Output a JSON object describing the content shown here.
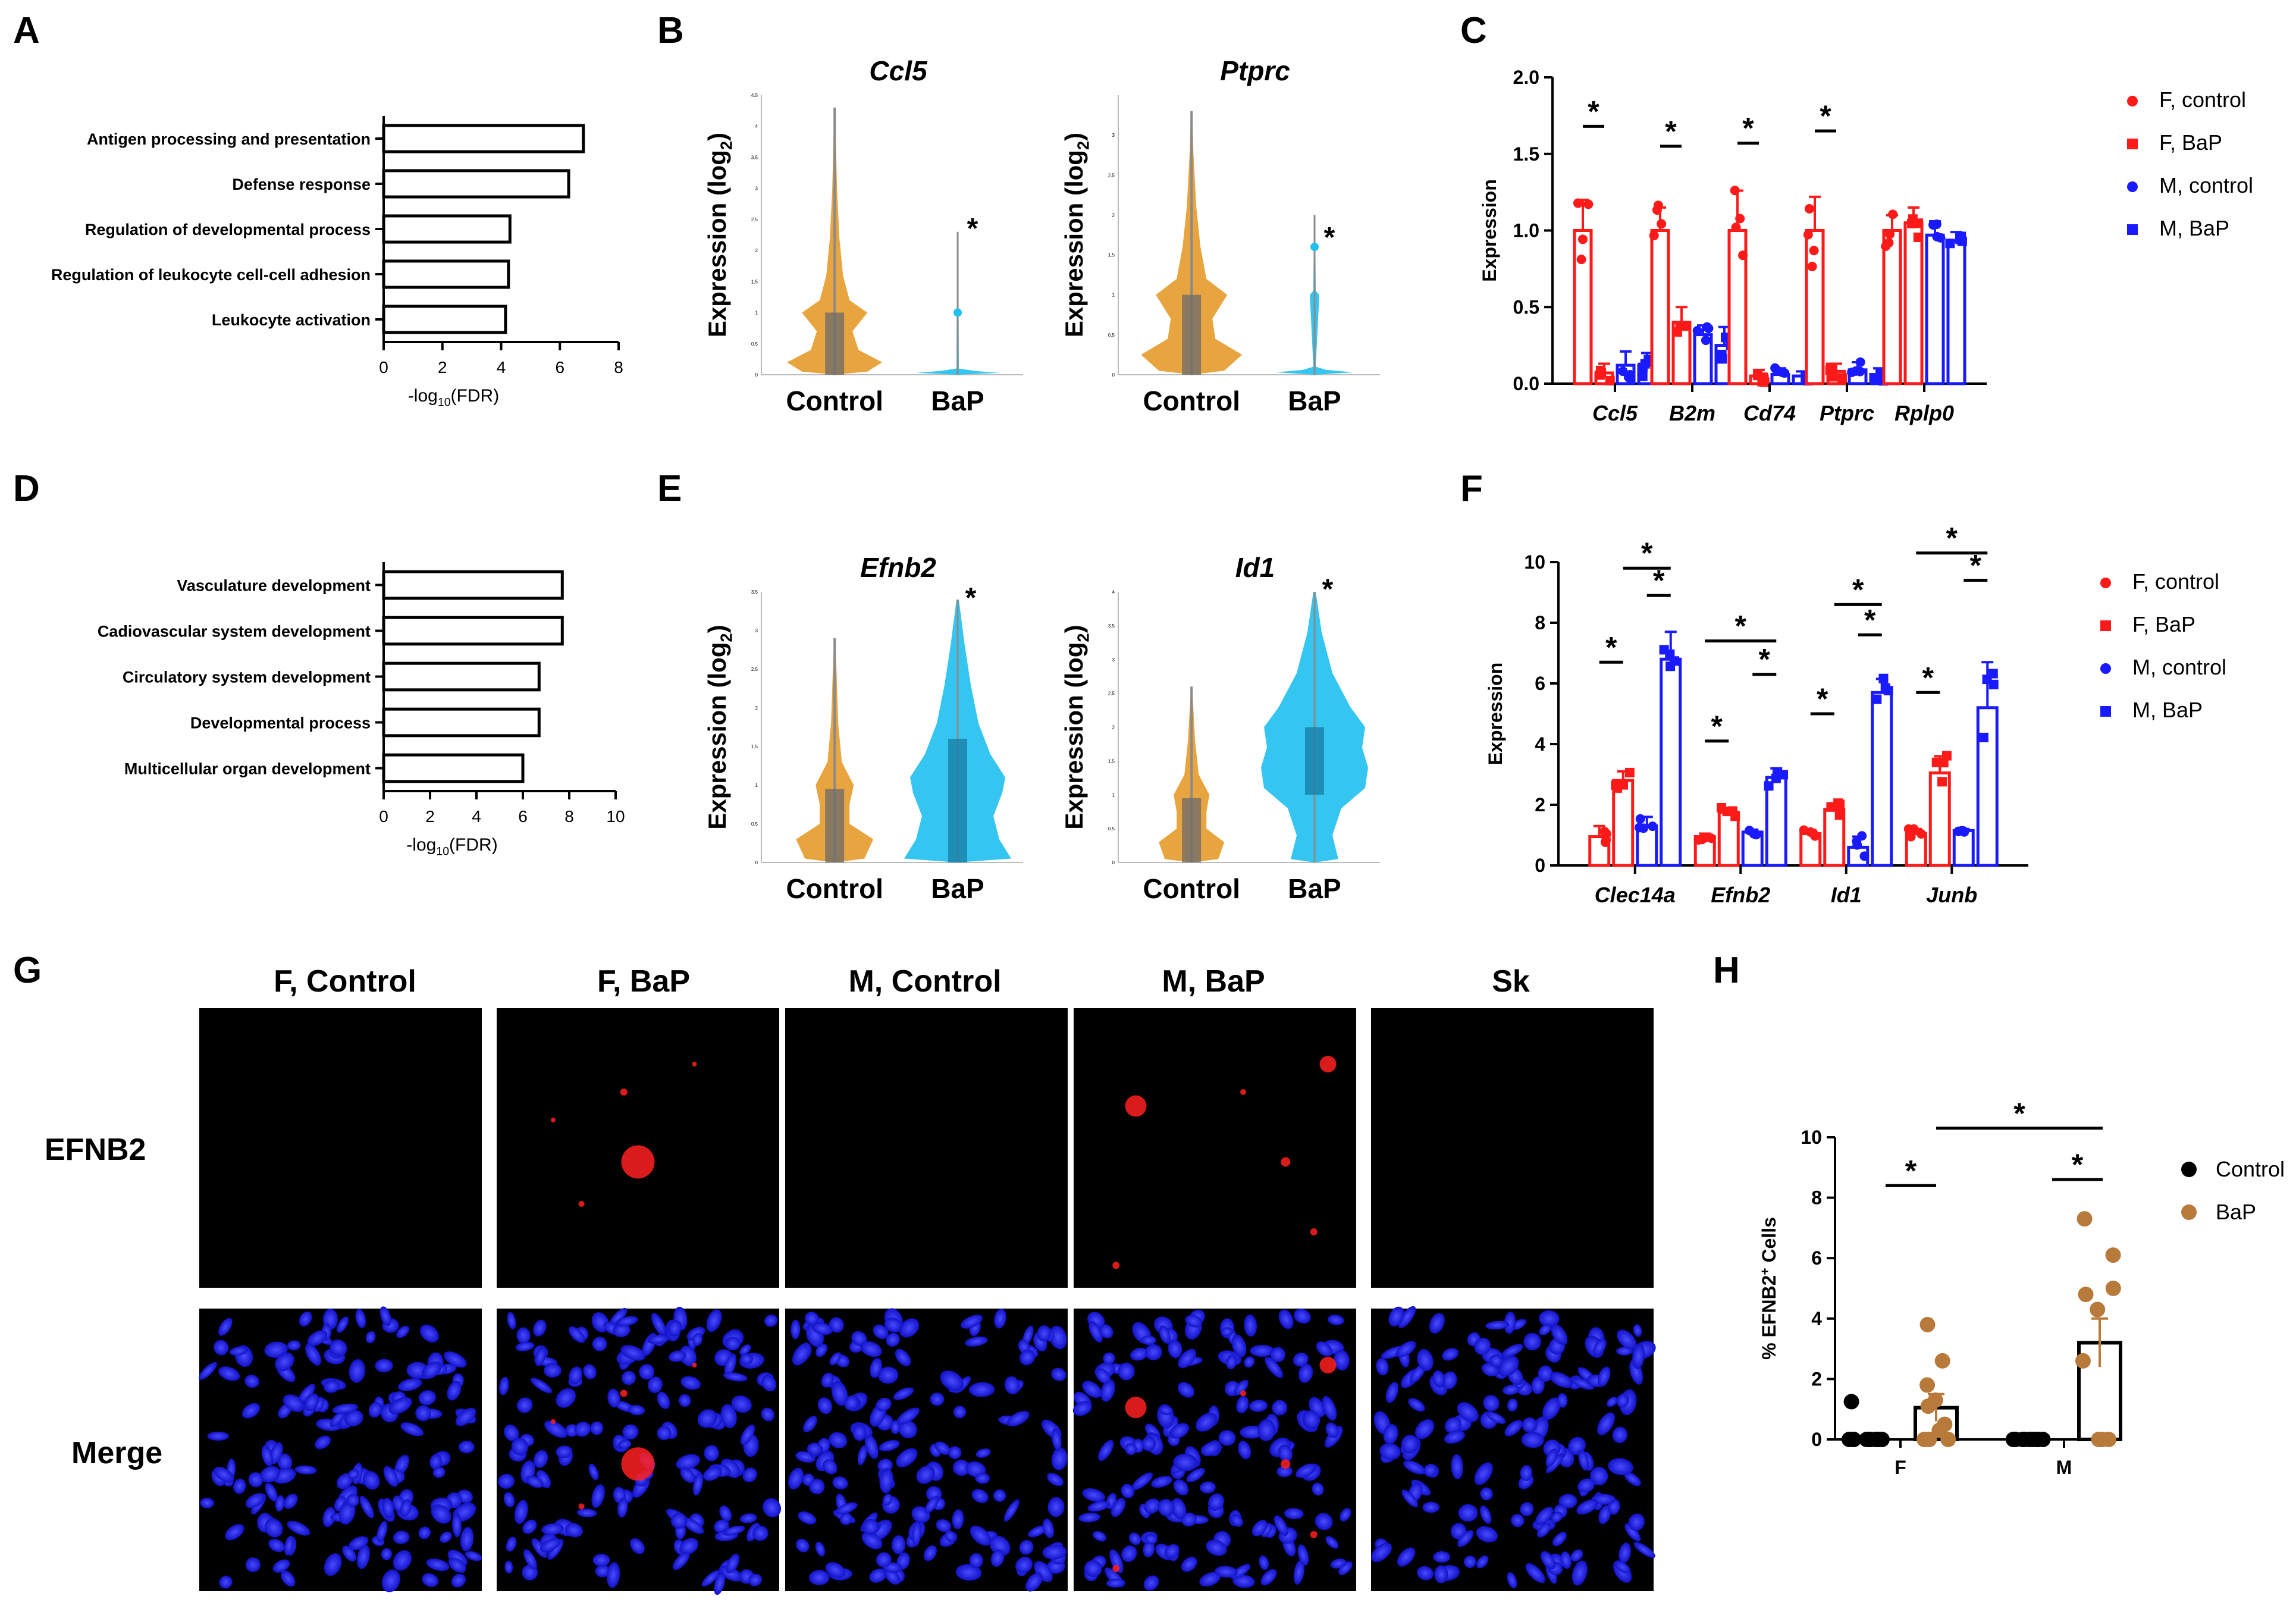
{
  "figure": {
    "domain": "multi-panel scientific figure"
  },
  "colors": {
    "red": "#ff1a1a",
    "blue": "#1a1aff",
    "orange": "#e59a2a",
    "cyan": "#1ec0f0",
    "brown": "#b87a3a",
    "black": "#000000",
    "nuclei": "#2020ff",
    "signal": "#ff2020"
  },
  "panel_letters": {
    "A": "A",
    "B": "B",
    "C": "C",
    "D": "D",
    "E": "E",
    "F": "F",
    "G": "G",
    "H": "H"
  },
  "chart_data": [
    {
      "id": "A",
      "type": "bar",
      "orientation": "horizontal",
      "categories": [
        "Antigen processing and presentation",
        "Defense response",
        "Regulation of developmental process",
        "Regulation of leukocyte cell-cell adhesion",
        "Leukocyte activation"
      ],
      "values": [
        6.8,
        6.3,
        4.3,
        4.25,
        4.15
      ],
      "xlabel_main": "-log",
      "xlabel_sub": "10",
      "xlabel_tail": "(FDR)",
      "xlim": [
        0,
        8
      ],
      "xticks": [
        "0",
        "2",
        "4",
        "6",
        "8"
      ]
    },
    {
      "id": "D",
      "type": "bar",
      "orientation": "horizontal",
      "categories": [
        "Vasculature development",
        "Cadiovascular system development",
        "Circulatory system development",
        "Developmental process",
        "Multicellular organ development"
      ],
      "values": [
        7.7,
        7.7,
        6.7,
        6.7,
        6.0
      ],
      "xlabel_main": "-log",
      "xlabel_sub": "10",
      "xlabel_tail": "(FDR)",
      "xlim": [
        0,
        10
      ],
      "xticks": [
        "0",
        "2",
        "4",
        "6",
        "8",
        "10"
      ]
    },
    {
      "id": "B",
      "type": "violin",
      "ylabel": "Expression (log",
      "ylabel_sub": "2",
      "ylabel_tail": ")",
      "groups": [
        "Control",
        "BaP"
      ],
      "significance": "*",
      "genes": [
        {
          "name": "Ccl5",
          "ymax": 4.5,
          "yticks": [
            "0",
            "0.5",
            "1",
            "1.5",
            "2",
            "2.5",
            "3",
            "3.5",
            "4",
            "4.5"
          ],
          "control_median": 0.5,
          "bap_median": 0
        },
        {
          "name": "Ptprc",
          "ymax": 3.5,
          "yticks": [
            "0",
            "0.5",
            "1",
            "1.5",
            "2",
            "2.5",
            "3"
          ],
          "control_median": 0.6,
          "bap_median": 0
        }
      ]
    },
    {
      "id": "E",
      "type": "violin",
      "ylabel": "Expression (log",
      "ylabel_sub": "2",
      "ylabel_tail": ")",
      "groups": [
        "Control",
        "BaP"
      ],
      "significance": "*",
      "genes": [
        {
          "name": "Efnb2",
          "ymax": 3.5,
          "yticks": [
            "0",
            "0.5",
            "1",
            "1.5",
            "2",
            "2.5",
            "3",
            "3.5"
          ],
          "control_median": 0.7,
          "bap_median": 1.1
        },
        {
          "name": "Id1",
          "ymax": 4,
          "yticks": [
            "0",
            "0.5",
            "1",
            "1.5",
            "2",
            "2.5",
            "3",
            "3.5",
            "4"
          ],
          "control_median": 0.5,
          "bap_median": 1.5
        }
      ]
    },
    {
      "id": "C",
      "type": "bar",
      "ylabel": "Expression",
      "ylim": [
        0,
        2.0
      ],
      "yticks": [
        "0.0",
        "0.5",
        "1.0",
        "1.5",
        "2.0"
      ],
      "categories": [
        "Ccl5",
        "B2m",
        "Cd74",
        "Ptprc",
        "Rplp0"
      ],
      "series": [
        {
          "name": "F, control",
          "values": [
            1.0,
            1.0,
            1.0,
            1.0,
            1.0
          ],
          "sem": [
            0.2,
            0.15,
            0.26,
            0.22,
            0.1
          ]
        },
        {
          "name": "F, BaP",
          "values": [
            0.07,
            0.4,
            0.05,
            0.08,
            1.05
          ],
          "sem": [
            0.06,
            0.1,
            0.04,
            0.05,
            0.1
          ]
        },
        {
          "name": "M, control",
          "values": [
            0.12,
            0.32,
            0.06,
            0.09,
            0.97
          ],
          "sem": [
            0.09,
            0.06,
            0.04,
            0.05,
            0.09
          ]
        },
        {
          "name": "M, BaP",
          "values": [
            0.12,
            0.25,
            0.05,
            0.06,
            0.93
          ],
          "sem": [
            0.08,
            0.12,
            0.03,
            0.04,
            0.06
          ]
        }
      ],
      "significance": [
        {
          "category": "Ccl5",
          "label": "*"
        },
        {
          "category": "B2m",
          "label": "*"
        },
        {
          "category": "Cd74",
          "label": "*"
        },
        {
          "category": "Ptprc",
          "label": "*"
        }
      ]
    },
    {
      "id": "F",
      "type": "bar",
      "ylabel": "Expression",
      "ylim": [
        0,
        10
      ],
      "yticks": [
        "0",
        "2",
        "4",
        "6",
        "8",
        "10"
      ],
      "categories": [
        "Clec14a",
        "Efnb2",
        "Id1",
        "Junb"
      ],
      "series": [
        {
          "name": "F, control",
          "values": [
            0.95,
            0.95,
            1.05,
            1.05
          ],
          "sem": [
            0.35,
            0.1,
            0.12,
            0.15
          ]
        },
        {
          "name": "F, BaP",
          "values": [
            2.8,
            1.75,
            1.85,
            3.05
          ],
          "sem": [
            0.3,
            0.15,
            0.2,
            0.55
          ]
        },
        {
          "name": "M, control",
          "values": [
            1.3,
            1.1,
            0.6,
            1.15
          ],
          "sem": [
            0.3,
            0.08,
            0.35,
            0.05
          ]
        },
        {
          "name": "M, BaP",
          "values": [
            6.8,
            2.9,
            5.7,
            5.2
          ],
          "sem": [
            0.9,
            0.3,
            0.45,
            1.5
          ]
        }
      ],
      "significance": [
        {
          "category": "Clec14a",
          "label": "*"
        },
        {
          "category": "Efnb2",
          "label": "*"
        },
        {
          "category": "Id1",
          "label": "*"
        },
        {
          "category": "Junb",
          "label": "*"
        }
      ]
    },
    {
      "id": "H",
      "type": "bar",
      "ylabel_main": "% EFNB2",
      "ylabel_sup": "+",
      "ylabel_tail": " Cells",
      "ylim": [
        0,
        10
      ],
      "yticks": [
        "0",
        "2",
        "4",
        "6",
        "8",
        "10"
      ],
      "categories": [
        "F",
        "M"
      ],
      "series": [
        {
          "name": "Control",
          "values": [
            0.05,
            0.0
          ],
          "sem": [
            0.05,
            0.0
          ]
        },
        {
          "name": "BaP",
          "values": [
            1.05,
            3.2
          ],
          "sem": [
            0.45,
            0.8
          ]
        }
      ],
      "points": {
        "F_control": [
          0,
          0,
          0,
          0,
          0,
          0,
          0,
          0,
          0,
          0,
          1.25
        ],
        "F_bap": [
          0,
          0,
          0,
          0,
          0.3,
          0.5,
          1.1,
          1.3,
          1.8,
          2.6,
          3.8
        ],
        "M_control": [
          0,
          0,
          0,
          0,
          0,
          0,
          0,
          0,
          0,
          0
        ],
        "M_bap": [
          0,
          0,
          0,
          0,
          2.6,
          4.3,
          4.8,
          5.0,
          6.1,
          7.3
        ]
      },
      "significance": [
        {
          "label": "*"
        },
        {
          "label": "*"
        },
        {
          "label": "*"
        }
      ]
    }
  ],
  "panel_G": {
    "column_headers": [
      "F, Control",
      "F, BaP",
      "M, Control",
      "M, BaP",
      "Sk"
    ],
    "row_labels": [
      "EFNB2",
      "Merge"
    ]
  }
}
